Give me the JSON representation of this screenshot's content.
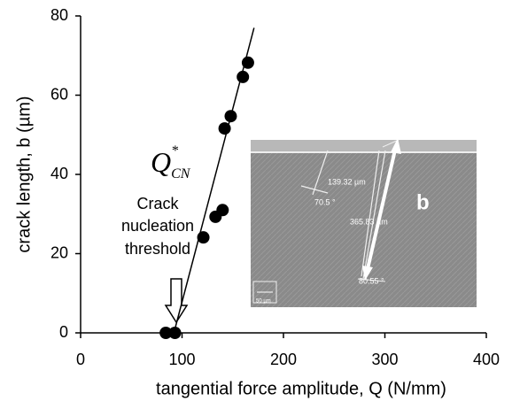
{
  "chart_data": {
    "type": "scatter",
    "x": [
      84,
      93,
      121,
      133,
      140,
      142,
      148,
      160,
      165
    ],
    "y": [
      0,
      0,
      24.1,
      29.3,
      31,
      51.6,
      54.7,
      64.6,
      68.2
    ],
    "color": "#000000",
    "fit_line": {
      "x": [
        92,
        171
      ],
      "y": [
        0,
        77
      ]
    },
    "xlim": [
      0,
      400
    ],
    "xticks": [
      0,
      100,
      200,
      300,
      400
    ],
    "ylim": [
      0,
      80
    ],
    "yticks": [
      0,
      20,
      40,
      60,
      80
    ],
    "xlabel": "tangential force amplitude, Q (N/mm)",
    "ylabel": "crack length, b (µm)",
    "annotation_symbol": {
      "main": "Q",
      "sup": "*",
      "sub": "CN"
    },
    "annotation_text": [
      "Crack",
      "nucleation",
      "threshold"
    ],
    "inset_labels": {
      "length1": "139.32 µm",
      "angle1": "70.5 °",
      "length2": "365.83 µm",
      "angle2": "80.55 °",
      "scale": "50 µm",
      "b": "b"
    }
  }
}
